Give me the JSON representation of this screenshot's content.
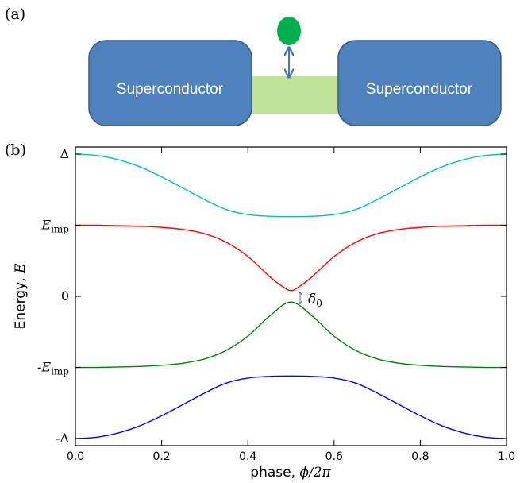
{
  "panel_a": {
    "label": "(a)",
    "left_block": "Superconductor",
    "right_block": "Superconductor",
    "colors": {
      "block": "#4F81BD",
      "block_border": "#385D8A",
      "bridge": "#BFE39A",
      "dot": "#00B050",
      "arrow": "#4472C4"
    }
  },
  "panel_b": {
    "label": "(b)",
    "annotation": {
      "symbol": "δ",
      "subscript": "0"
    }
  },
  "chart_data": {
    "type": "line",
    "xlabel_prefix": "phase, ",
    "xlabel_math": "ϕ/2π",
    "ylabel_prefix": "Energy, ",
    "ylabel_math": "E",
    "xlim": [
      0.0,
      1.0
    ],
    "ylim": [
      -1.05,
      1.05
    ],
    "x_ticks": [
      0.0,
      0.2,
      0.4,
      0.6,
      0.8,
      1.0
    ],
    "x_tick_labels": [
      "0.0",
      "0.2",
      "0.4",
      "0.6",
      "0.8",
      "1.0"
    ],
    "y_ticks": [
      {
        "value": 1.0,
        "label": "Δ"
      },
      {
        "value": 0.5,
        "label": "E",
        "sub": "imp"
      },
      {
        "value": 0.0,
        "label": "0"
      },
      {
        "value": -0.5,
        "label": "-E",
        "sub": "imp"
      },
      {
        "value": -1.0,
        "label": "-Δ"
      }
    ],
    "series": [
      {
        "color": "#00BFBF",
        "values_x": [
          0.0,
          0.05,
          0.1,
          0.15,
          0.2,
          0.25,
          0.3,
          0.35,
          0.4,
          0.45,
          0.5,
          0.55,
          0.6,
          0.65,
          0.7,
          0.75,
          0.8,
          0.85,
          0.9,
          0.95,
          1.0
        ],
        "values_y": [
          1.0,
          0.99,
          0.96,
          0.91,
          0.84,
          0.76,
          0.68,
          0.61,
          0.575,
          0.563,
          0.56,
          0.563,
          0.575,
          0.61,
          0.68,
          0.76,
          0.84,
          0.91,
          0.96,
          0.99,
          1.0
        ]
      },
      {
        "color": "#FF0000",
        "values_x": [
          0.0,
          0.05,
          0.1,
          0.15,
          0.2,
          0.25,
          0.3,
          0.35,
          0.4,
          0.45,
          0.48,
          0.5,
          0.52,
          0.55,
          0.6,
          0.65,
          0.7,
          0.75,
          0.8,
          0.85,
          0.9,
          0.95,
          1.0
        ],
        "values_y": [
          0.5,
          0.5,
          0.497,
          0.493,
          0.485,
          0.47,
          0.44,
          0.38,
          0.28,
          0.14,
          0.07,
          0.04,
          0.07,
          0.14,
          0.28,
          0.38,
          0.44,
          0.47,
          0.485,
          0.493,
          0.497,
          0.5,
          0.5
        ]
      },
      {
        "color": "#008000",
        "values_x": [
          0.0,
          0.05,
          0.1,
          0.15,
          0.2,
          0.25,
          0.3,
          0.35,
          0.4,
          0.45,
          0.5,
          0.55,
          0.6,
          0.65,
          0.7,
          0.75,
          0.8,
          0.85,
          0.9,
          0.95,
          1.0
        ],
        "values_y": [
          -0.5,
          -0.5,
          -0.497,
          -0.493,
          -0.485,
          -0.47,
          -0.44,
          -0.38,
          -0.28,
          -0.14,
          -0.04,
          -0.14,
          -0.28,
          -0.38,
          -0.44,
          -0.47,
          -0.485,
          -0.493,
          -0.497,
          -0.5,
          -0.5
        ]
      },
      {
        "color": "#0000FF",
        "values_x": [
          0.0,
          0.05,
          0.1,
          0.15,
          0.2,
          0.25,
          0.3,
          0.35,
          0.4,
          0.45,
          0.5,
          0.55,
          0.6,
          0.65,
          0.7,
          0.75,
          0.8,
          0.85,
          0.9,
          0.95,
          1.0
        ],
        "values_y": [
          -1.0,
          -0.99,
          -0.96,
          -0.91,
          -0.84,
          -0.76,
          -0.68,
          -0.61,
          -0.575,
          -0.563,
          -0.56,
          -0.563,
          -0.575,
          -0.61,
          -0.68,
          -0.76,
          -0.84,
          -0.91,
          -0.96,
          -0.99,
          -1.0
        ]
      }
    ]
  }
}
